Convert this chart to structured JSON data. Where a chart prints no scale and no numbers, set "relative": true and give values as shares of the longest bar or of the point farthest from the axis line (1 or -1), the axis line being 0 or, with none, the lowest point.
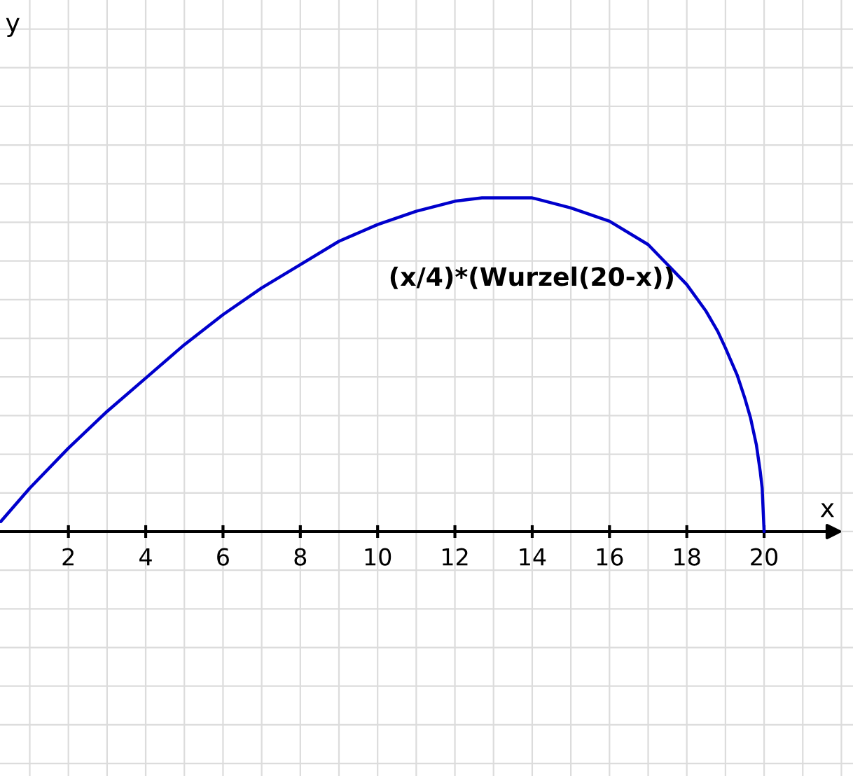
{
  "chart_data": {
    "type": "line",
    "xlabel": "x",
    "relative": true,
    "grid": true,
    "tick_labels": "x",
    "annotations": [
      "y"
    ],
    "xlim": [
      0.23,
      22.3
    ],
    "xticks": [
      2,
      4,
      6,
      8,
      10,
      12,
      14,
      16,
      18,
      20
    ],
    "series": [
      {
        "name": "(x/4)*(Wurzel(20-x))",
        "color": "#0000cc",
        "x": [
          0.25,
          1,
          2,
          3,
          4,
          5,
          6,
          7,
          8,
          9,
          10,
          11,
          12,
          12.7,
          13.3,
          14,
          15,
          16,
          17,
          17.5,
          18,
          18.5,
          18.8,
          19,
          19.3,
          19.5,
          19.65,
          19.8,
          19.9,
          19.95,
          20
        ],
        "values": [
          0.03,
          0.13,
          0.25,
          0.36,
          0.46,
          0.56,
          0.65,
          0.73,
          0.8,
          0.87,
          0.92,
          0.96,
          0.99,
          1.0,
          1.0,
          1.0,
          0.97,
          0.93,
          0.86,
          0.8,
          0.74,
          0.66,
          0.6,
          0.55,
          0.47,
          0.4,
          0.34,
          0.26,
          0.18,
          0.13,
          0
        ]
      }
    ]
  }
}
